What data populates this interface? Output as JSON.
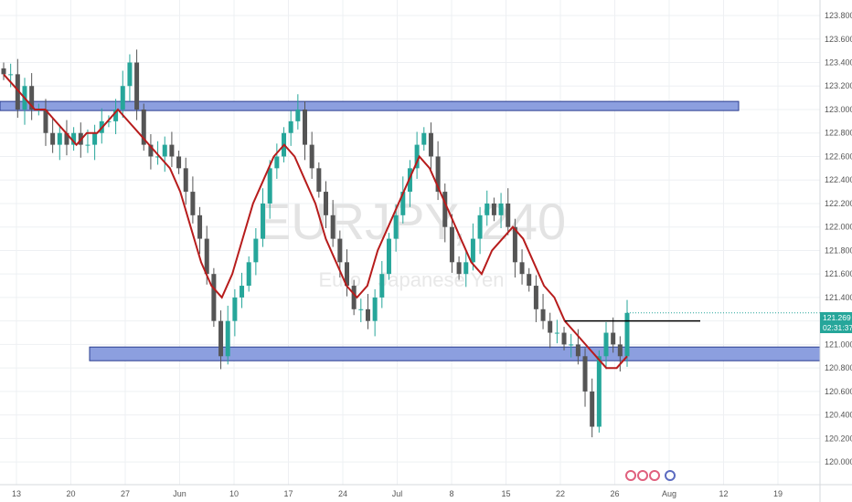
{
  "chart_data": {
    "type": "candlestick",
    "symbol": "EURJPY, 240",
    "subtitle": "Euro / Japanese Yen",
    "ylim": [
      119.9,
      123.87
    ],
    "y_ticks": [
      "123.800",
      "123.600",
      "123.400",
      "123.200",
      "123.000",
      "122.800",
      "122.600",
      "122.400",
      "122.200",
      "122.000",
      "121.800",
      "121.600",
      "121.400",
      "121.200",
      "121.000",
      "120.800",
      "120.600",
      "120.400",
      "120.200",
      "120.000"
    ],
    "x_ticks": [
      "13",
      "20",
      "27",
      "Jun",
      "10",
      "17",
      "24",
      "Jul",
      "8",
      "15",
      "22",
      "26",
      "Aug",
      "12",
      "19"
    ],
    "last_price": "121.269",
    "countdown": "02:31:37",
    "series": [
      {
        "name": "",
        "values": [
          123.3,
          123.3,
          123.0,
          123.2,
          123.0,
          123.0,
          122.8,
          122.7,
          122.8,
          122.7,
          122.8,
          122.7,
          122.7,
          122.8,
          122.9,
          122.9,
          123.0,
          123.2,
          123.4,
          123.0,
          122.7,
          122.6,
          122.6,
          122.7,
          122.6,
          122.5,
          122.3,
          122.1,
          121.9,
          121.6,
          121.2,
          120.9,
          121.2,
          121.4,
          121.5,
          121.7,
          121.9,
          122.2,
          122.5,
          122.6,
          122.8,
          122.9,
          123.0,
          122.7,
          122.5,
          122.3,
          122.1,
          121.9,
          121.7,
          121.5,
          121.3,
          121.3,
          121.2,
          121.4,
          121.6,
          121.9,
          122.1,
          122.3,
          122.5,
          122.7,
          122.8,
          122.6,
          122.3,
          122.0,
          121.7,
          121.6,
          121.7,
          121.9,
          122.1,
          122.2,
          122.1,
          122.2,
          122.0,
          121.7,
          121.6,
          121.5,
          121.3,
          121.2,
          121.1,
          121.1,
          121.0,
          121.0,
          120.9,
          120.6,
          120.3,
          120.9,
          121.1,
          121.0,
          120.9,
          121.269
        ]
      },
      {
        "name": "",
        "values": [
          123.3,
          123.2,
          123.1,
          123.0,
          123.0,
          122.9,
          122.8,
          122.7,
          122.8,
          122.8,
          122.9,
          123.0,
          122.9,
          122.8,
          122.7,
          122.6,
          122.5,
          122.3,
          122.0,
          121.7,
          121.5,
          121.4,
          121.6,
          121.9,
          122.2,
          122.4,
          122.6,
          122.7,
          122.6,
          122.4,
          122.2,
          121.9,
          121.7,
          121.5,
          121.4,
          121.5,
          121.8,
          122.0,
          122.2,
          122.4,
          122.6,
          122.5,
          122.3,
          122.1,
          121.9,
          121.7,
          121.6,
          121.8,
          121.9,
          122.0,
          121.9,
          121.7,
          121.5,
          121.4,
          121.2,
          121.1,
          121.0,
          120.9,
          120.8,
          120.8,
          120.9
        ]
      }
    ],
    "levels": [
      {
        "value": 123.03,
        "kind": "zone"
      },
      {
        "value": 120.92,
        "kind": "zone"
      },
      {
        "value": 121.2,
        "kind": "line"
      }
    ],
    "colors": {
      "bull": "#26a69a",
      "bear": "#555555",
      "ma": "#b71c1c",
      "zone_fill": "#8c9fdf",
      "zone_stroke": "#2a3d8f",
      "price_tag": "#26a69a",
      "grid": "#eef0f3"
    },
    "grid": true
  }
}
